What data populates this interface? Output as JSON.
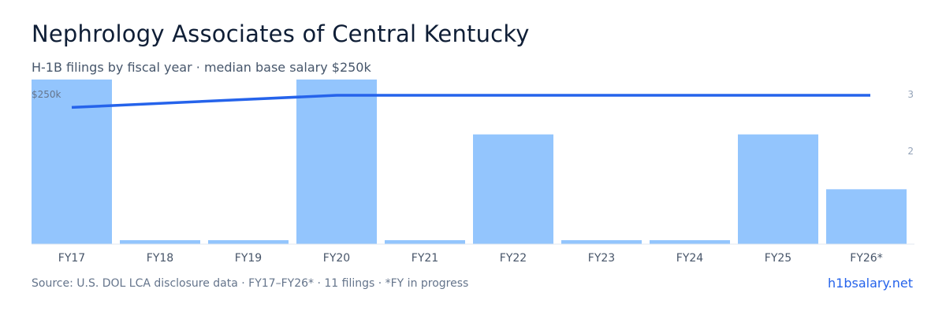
{
  "header": {
    "title": "Nephrology Associates of Central Kentucky",
    "subtitle": "H-1B filings by fiscal year · median base salary $250k"
  },
  "footer": {
    "source": "Source: U.S. DOL LCA disclosure data · FY17–FY26* · 11 filings · *FY in progress",
    "brand": "h1bsalary.net"
  },
  "colors": {
    "bars": "#93c5fd",
    "line": "#2563eb"
  },
  "chart_data": {
    "type": "bar",
    "categories": [
      "FY17",
      "FY18",
      "FY19",
      "FY20",
      "FY21",
      "FY22",
      "FY23",
      "FY24",
      "FY25",
      "FY26*"
    ],
    "series": [
      {
        "values": [
          3,
          0,
          0,
          3,
          0,
          2,
          0,
          0,
          2,
          1
        ],
        "axis": "right",
        "mark": "bar"
      },
      {
        "values": [
          240000,
          null,
          null,
          250000,
          null,
          250000,
          null,
          null,
          250000,
          250000
        ],
        "axis": "left",
        "mark": "line"
      }
    ],
    "y_left": {
      "tick_label": "$250k",
      "tick_value": 250000
    },
    "y_right": {
      "ticks": [
        "2",
        "3"
      ],
      "lim": [
        0,
        3
      ]
    },
    "grid": false,
    "legend": "none"
  }
}
